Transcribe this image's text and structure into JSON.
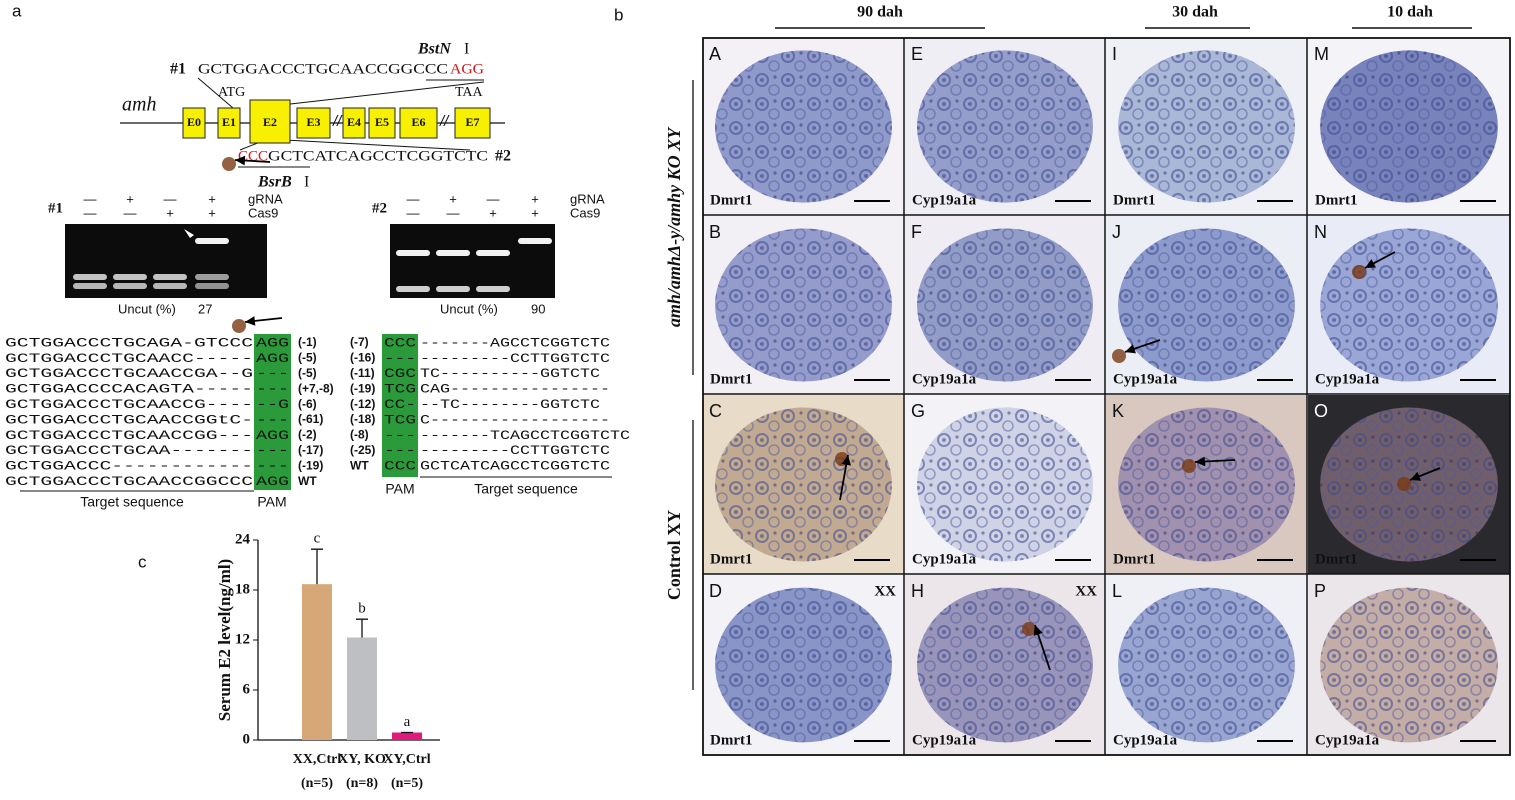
{
  "panel_a": {
    "label": "a",
    "gene": "amh",
    "exons": [
      "E0",
      "E1",
      "E2",
      "E3",
      "E4",
      "E5",
      "E6",
      "E7"
    ],
    "start": "ATG",
    "stop": "TAA",
    "site1": {
      "id": "#1",
      "seq": "GCTGGACCCTGCAACCGGCCC",
      "pam": "AGG",
      "enzyme": "BstN",
      "enzyme_suffix": "I"
    },
    "site2": {
      "id": "#2",
      "pam": "CCC",
      "seq": "GCTCATCAGCCTCGGTCTC",
      "enzyme": "BsrB",
      "enzyme_suffix": "I"
    },
    "gel1": {
      "id": "#1",
      "rows": [
        {
          "label": "gRNA",
          "marks": [
            "—",
            "+",
            "—",
            "+"
          ]
        },
        {
          "label": "Cas9",
          "marks": [
            "—",
            "—",
            "+",
            "+"
          ]
        }
      ],
      "uncut_label": "Uncut (%)",
      "uncut_value": 27
    },
    "gel2": {
      "id": "#2",
      "rows": [
        {
          "label": "gRNA",
          "marks": [
            "—",
            "+",
            "—",
            "+"
          ]
        },
        {
          "label": "Cas9",
          "marks": [
            "—",
            "—",
            "+",
            "+"
          ]
        }
      ],
      "uncut_label": "Uncut (%)",
      "uncut_value": 90
    },
    "alignment1": {
      "rows": [
        {
          "seq": "GCTGGACCCTGCAGA-GTCCC",
          "pam": "AGG",
          "note": "(-1)"
        },
        {
          "seq": "GCTGGACCCTGCAACC-----",
          "pam": "AGG",
          "note": "(-5)"
        },
        {
          "seq": "GCTGGACCCTGCAACCGA--G",
          "pam": "---",
          "note": "(-5)"
        },
        {
          "seq": "GCTGGACCCCACAGTA-----",
          "pam": "---",
          "note": "(+7,-8)"
        },
        {
          "seq": "GCTGGACCCTGCAACCG----",
          "pam": "--G",
          "note": "(-6)"
        },
        {
          "seq": "GCTGGACCCTGCAACCGGtC-",
          "pam": "---",
          "note": "(-61)"
        },
        {
          "seq": "GCTGGACCCTGCAACCGG---",
          "pam": "AGG",
          "note": "(-2)"
        },
        {
          "seq": "GCTGGACCCTGCAA-------",
          "pam": "---",
          "note": "(-17)"
        },
        {
          "seq": "GCTGGACCC------------",
          "pam": "---",
          "note": "(-19)"
        },
        {
          "seq": "GCTGGACCCTGCAACCGGCCC",
          "pam": "AGG",
          "note": "WT"
        }
      ],
      "target_label": "Target sequence",
      "pam_label": "PAM"
    },
    "alignment2": {
      "rows": [
        {
          "note": "(-7)",
          "pam": "CCC",
          "seq": "-------AGCCTCGGTCTC"
        },
        {
          "note": "(-16)",
          "pam": "---",
          "seq": "---------CCTTGGTCTC"
        },
        {
          "note": "(-11)",
          "pam": "CGC",
          "seq": "TC----------GGTCTC"
        },
        {
          "note": "(-19)",
          "pam": "TCG",
          "seq": "CAG----------------"
        },
        {
          "note": "(-12)",
          "pam": "CC-",
          "seq": "--TC--------GGTCTC"
        },
        {
          "note": "(-18)",
          "pam": "TCG",
          "seq": "C------------------"
        },
        {
          "note": "(-8)",
          "pam": "---",
          "seq": "-------TCAGCCTCGGTCTC"
        },
        {
          "note": "(-25)",
          "pam": "---",
          "seq": "---------CCTTGGTCTC"
        },
        {
          "note": "WT",
          "pam": "CCC",
          "seq": "GCTCATCAGCCTCGGTCTC"
        }
      ],
      "target_label": "Target sequence",
      "pam_label": "PAM"
    }
  },
  "panel_b": {
    "label": "b",
    "headers": [
      "90 dah",
      "30 dah",
      "10 dah"
    ],
    "row_groups": [
      "amh/amhΔ-y/amhy KO XY",
      "Control XY"
    ],
    "cells": [
      {
        "letter": "A",
        "stain": "Dmrt1"
      },
      {
        "letter": "E",
        "stain": "Cyp19a1a"
      },
      {
        "letter": "I",
        "stain": "Dmrt1"
      },
      {
        "letter": "M",
        "stain": "Dmrt1"
      },
      {
        "letter": "B",
        "stain": "Dmrt1"
      },
      {
        "letter": "F",
        "stain": "Cyp19a1a"
      },
      {
        "letter": "J",
        "stain": "Cyp19a1a"
      },
      {
        "letter": "N",
        "stain": "Cyp19a1a"
      },
      {
        "letter": "C",
        "stain": "Dmrt1"
      },
      {
        "letter": "G",
        "stain": "Cyp19a1a"
      },
      {
        "letter": "K",
        "stain": "Dmrt1"
      },
      {
        "letter": "O",
        "stain": "Dmrt1"
      },
      {
        "letter": "D",
        "stain": "Dmrt1",
        "tag": "XX"
      },
      {
        "letter": "H",
        "stain": "Cyp19a1a",
        "tag": "XX"
      },
      {
        "letter": "L",
        "stain": "Cyp19a1a"
      },
      {
        "letter": "P",
        "stain": "Cyp19a1a"
      }
    ]
  },
  "panel_c": {
    "label": "c",
    "y_label": "Serum E2 level(ng/ml)",
    "ylim": [
      0,
      24
    ],
    "yticks": [
      0,
      6,
      12,
      18,
      24
    ],
    "bars": [
      {
        "category": "XX,Ctrl",
        "n": "(n=5)",
        "value": 18.7,
        "error": 4.2,
        "letter": "c",
        "color": "#d6a777"
      },
      {
        "category": "XY, KO",
        "n": "(n=8)",
        "value": 12.3,
        "error": 2.2,
        "letter": "b",
        "color": "#bebfc3"
      },
      {
        "category": "XY,Ctrl",
        "n": "(n=5)",
        "value": 0.9,
        "error": 0,
        "letter": "a",
        "color": "#e0197d"
      }
    ]
  }
}
